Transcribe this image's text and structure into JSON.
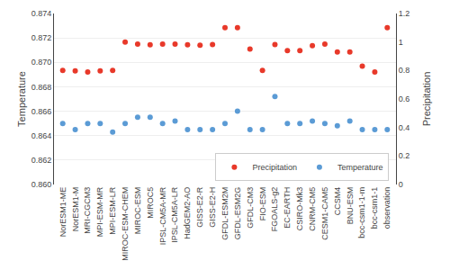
{
  "chart_data": {
    "type": "scatter",
    "categories": [
      "NorESM1-ME",
      "NorESM1-M",
      "MRI-CGCM3",
      "MPI-ESM-MR",
      "MPI-ESM-LR",
      "MIROC-ESM-CHEM",
      "MIROC-ESM",
      "MIROC5",
      "IPSL-CM5A-MR",
      "IPSL-CM5A-LR",
      "HadGEM2-AO",
      "GISS-E2-R",
      "GISS-E2-H",
      "GFDL-ESM2M",
      "GFDL-ESM2G",
      "GFDL-CM3",
      "FIO-ESM",
      "FGOALS-g2",
      "EC-EARTH",
      "CSIRO-Mk3",
      "CNRM-CM5",
      "CESM1-CAM5",
      "CCSM4",
      "BNU-ESM",
      "bcc-csm1-1-m",
      "bcc-csm1-1",
      "observation"
    ],
    "series": [
      {
        "name": "Precipitation",
        "color": "#e8392a",
        "axis": "y2",
        "values": [
          0.8,
          0.797,
          0.79,
          0.798,
          0.8,
          1.0,
          0.985,
          0.98,
          0.985,
          0.985,
          0.98,
          0.978,
          0.982,
          1.1,
          1.1,
          0.95,
          0.8,
          0.982,
          0.94,
          0.94,
          0.975,
          0.985,
          0.93,
          0.93,
          0.83,
          0.79,
          1.1
        ]
      },
      {
        "name": "Temperature",
        "color": "#5b9bd5",
        "values": [
          0.865,
          0.8645,
          0.865,
          0.865,
          0.8643,
          0.865,
          0.8655,
          0.8655,
          0.865,
          0.8652,
          0.8645,
          0.8645,
          0.8645,
          0.865,
          0.866,
          0.8645,
          0.8645,
          0.8672,
          0.865,
          0.865,
          0.8652,
          0.865,
          0.8648,
          0.8652,
          0.8645,
          0.8645,
          0.8645
        ]
      }
    ],
    "ylabel": "Temperature",
    "y2label": "Precipitation",
    "ylim": [
      0.86,
      0.874
    ],
    "yticks": [
      {
        "value": 0.86,
        "label": "0.860"
      },
      0.862,
      0.864,
      0.866,
      0.868,
      {
        "value": 0.87,
        "label": "0.870"
      },
      0.872,
      0.874
    ],
    "y2lim": [
      0.0,
      1.2
    ],
    "y2ticks": [
      0,
      0.2,
      0.4,
      0.6,
      0.8,
      1,
      1.2
    ],
    "grid": true,
    "legend": "lower right"
  }
}
